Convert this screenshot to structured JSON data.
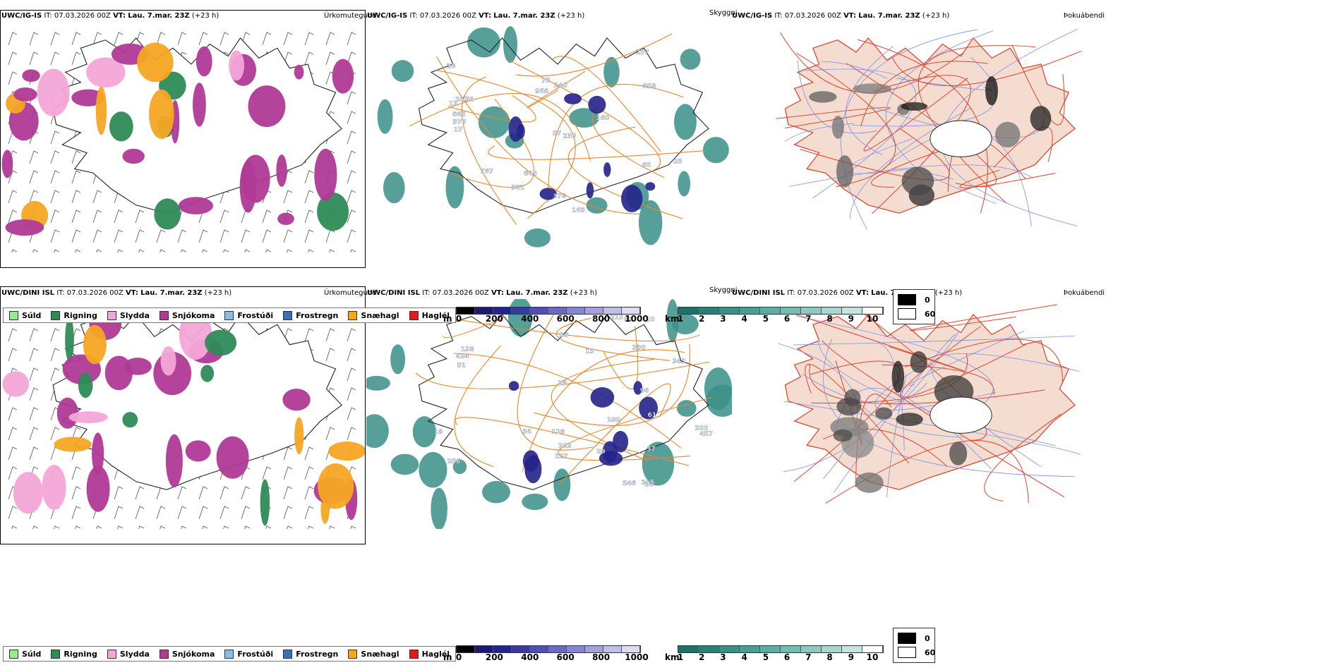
{
  "rows": [
    {
      "model": "UWC/IG-IS",
      "it_label": "IT:",
      "it_value": "07.03.2026 00Z",
      "vt_label": "VT:",
      "vt_value": "Lau. 7.mar. 23Z",
      "lead": "(+23 h)"
    },
    {
      "model": "UWC/DINI ISL",
      "it_label": "IT:",
      "it_value": "07.03.2026 00Z",
      "vt_label": "VT:",
      "vt_value": "Lau. 7.mar. 23Z",
      "lead": "(+23 h)"
    }
  ],
  "panel_titles": {
    "precip": "Úrkomutegund",
    "cloud": "Skyggni",
    "fog": "Þokuábendi"
  },
  "precip_legend": [
    {
      "label": "Súld",
      "color": "#90ee90"
    },
    {
      "label": "Rigning",
      "color": "#2e8b57"
    },
    {
      "label": "Slydda",
      "color": "#f4a6d7"
    },
    {
      "label": "Snjókoma",
      "color": "#b03a96"
    },
    {
      "label": "Frostúði",
      "color": "#87bfe8"
    },
    {
      "label": "Frostregn",
      "color": "#3b6fb6"
    },
    {
      "label": "Snæhagl",
      "color": "#f5a623"
    },
    {
      "label": "Haglél",
      "color": "#e31a1c"
    }
  ],
  "cloud_base_bar": {
    "unit": "m",
    "ticks": [
      "0",
      "200",
      "400",
      "600",
      "800",
      "1000"
    ],
    "colors": [
      "#000000",
      "#1a1a6e",
      "#24248a",
      "#3a3a9e",
      "#5050b0",
      "#6a6abe",
      "#8686cc",
      "#a2a2d8",
      "#c0c0e6",
      "#dcdcf2"
    ]
  },
  "visibility_bar": {
    "unit": "km",
    "ticks": [
      "1",
      "2",
      "3",
      "4",
      "5",
      "6",
      "7",
      "8",
      "9",
      "10"
    ],
    "colors": [
      "#1f6f6a",
      "#2a7f79",
      "#3a8f88",
      "#4d9d96",
      "#62aba4",
      "#78b9b2",
      "#90c7c0",
      "#a9d5cf",
      "#c4e4df",
      "#ffffff"
    ]
  },
  "fog_legend": [
    {
      "value": "0",
      "color": "#000000"
    },
    {
      "value": "60",
      "color": "#ffffff"
    }
  ],
  "cloud_labels_top": [
    "230",
    "149",
    "12",
    "26",
    "74",
    "267",
    "665",
    "381",
    "57",
    "25",
    "845",
    "240",
    "858",
    "160",
    "376",
    "17",
    "76",
    "65",
    "767",
    "376",
    "257",
    "966"
  ],
  "cloud_labels_bottom": [
    "138",
    "26",
    "215",
    "28",
    "13",
    "546",
    "56",
    "127",
    "255",
    "203",
    "10",
    "96",
    "61",
    "345",
    "128",
    "215",
    "256",
    "34",
    "390",
    "82",
    "57",
    "18",
    "434",
    "51",
    "457",
    "29",
    "100"
  ]
}
